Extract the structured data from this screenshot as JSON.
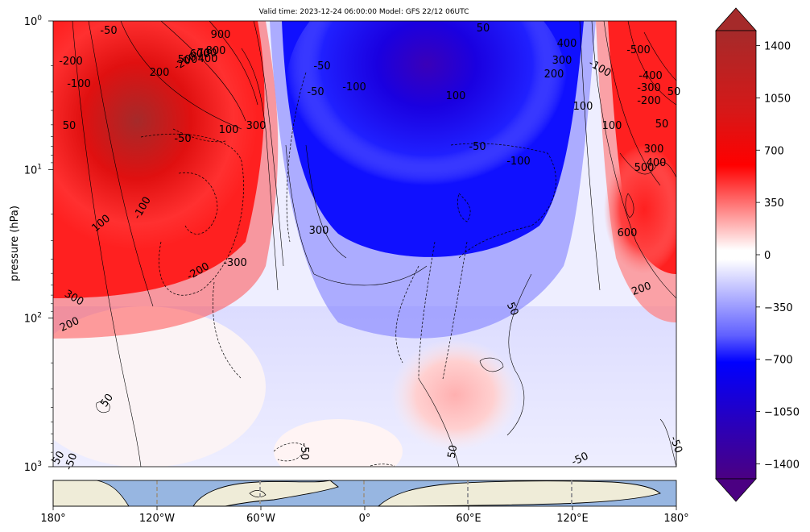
{
  "header": {
    "title": "Valid time: 2023-12-24 06:00:00 Model: GFS 22/12 06UTC"
  },
  "chart_data": {
    "type": "heatmap",
    "title": "Valid time: 2023-12-24 06:00:00 Model: GFS 22/12 06UTC",
    "ylabel": "pressure (hPa)",
    "xlabel": "",
    "yscale": "log",
    "yinverted": true,
    "ylim": [
      1000,
      1
    ],
    "xlim": [
      -180,
      180
    ],
    "ytick_labels": [
      "10^0",
      "10^1",
      "10^2",
      "10^3"
    ],
    "xtick_labels": [
      "180°",
      "120°W",
      "60°W",
      "0°",
      "60°E",
      "120°E",
      "180°"
    ],
    "colorbar": {
      "colormap": "purple-blue-white-red-brown",
      "range": [
        -1500,
        1500
      ],
      "extend": "both",
      "tick_labels": [
        "1400",
        "1050",
        "700",
        "350",
        "0",
        "−350",
        "−700",
        "−1050",
        "−1400"
      ],
      "tick_values": [
        1400,
        1050,
        700,
        350,
        0,
        -350,
        -700,
        -1050,
        -1400
      ],
      "colors": {
        "low": "#4b0082",
        "blue": "#0000ff",
        "white": "#ffffff",
        "red": "#ff0000",
        "high": "#a52a2a"
      }
    },
    "contour_labels": [
      "-50",
      "900",
      "800",
      "-200",
      "200",
      "400",
      "500",
      "600",
      "700",
      "50",
      "-100",
      "-200",
      "50",
      "-100",
      "100",
      "-50",
      "-50",
      "-50",
      "100",
      "300",
      "-50",
      "-100",
      "400",
      "300",
      "200",
      "-100",
      "-500",
      "-400",
      "-300",
      "-200",
      "100",
      "100",
      "50",
      "300",
      "500",
      "400",
      "-100",
      "100",
      "300",
      "-200",
      "-300",
      "600",
      "200",
      "300",
      "200",
      "50",
      "50",
      "-50",
      "50",
      "50",
      "-50",
      "-50",
      "50",
      "-50"
    ],
    "map_strip": {
      "land_color": "#efecd8",
      "ocean_color": "#97b6e1"
    }
  }
}
